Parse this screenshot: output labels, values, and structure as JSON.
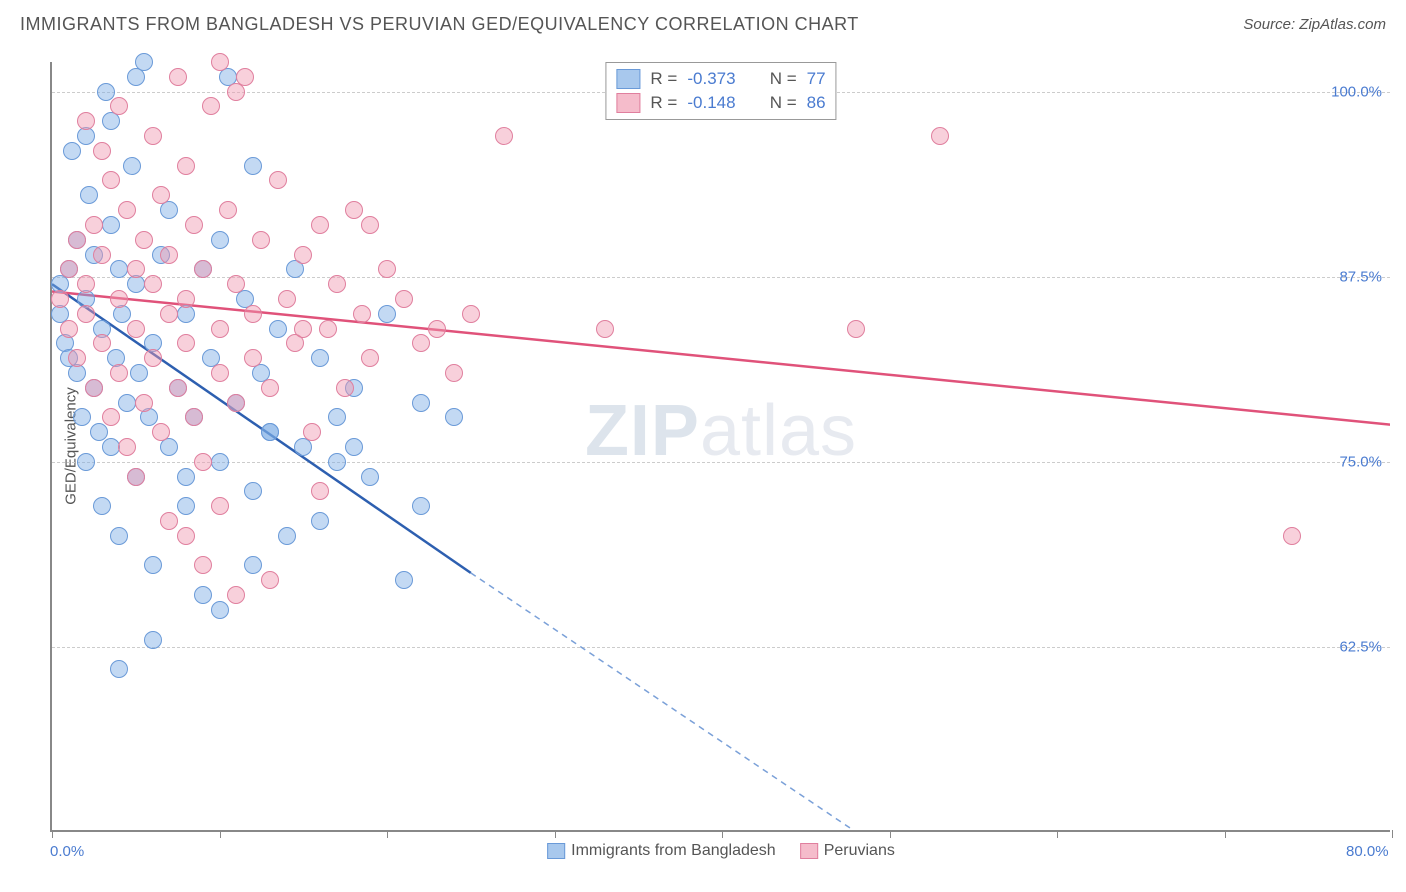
{
  "header": {
    "title": "IMMIGRANTS FROM BANGLADESH VS PERUVIAN GED/EQUIVALENCY CORRELATION CHART",
    "source_prefix": "Source: ",
    "source": "ZipAtlas.com"
  },
  "chart": {
    "type": "scatter",
    "ylabel": "GED/Equivalency",
    "xlim": [
      0,
      80
    ],
    "ylim": [
      50,
      102
    ],
    "x_ticks": [
      0,
      10,
      20,
      30,
      40,
      50,
      60,
      70,
      80
    ],
    "x_tick_labels": {
      "0": "0.0%",
      "80": "80.0%"
    },
    "y_gridlines": [
      62.5,
      75.0,
      87.5,
      100.0
    ],
    "y_tick_labels": [
      "62.5%",
      "75.0%",
      "87.5%",
      "100.0%"
    ],
    "background_color": "#ffffff",
    "grid_color": "#cccccc",
    "axis_color": "#888888",
    "label_color": "#555555",
    "tick_label_color": "#4a7bd0",
    "marker_size": 18,
    "marker_opacity": 0.45,
    "watermark": "ZIPatlas",
    "series": [
      {
        "name": "Immigrants from Bangladesh",
        "color": "#7aaae4",
        "border_color": "#6a9ad8",
        "R": "-0.373",
        "N": "77",
        "trend": {
          "x1": 0,
          "y1": 87.0,
          "x2": 25,
          "y2": 67.5,
          "extend_x2": 48,
          "extend_y2": 50,
          "width": 2.5
        },
        "points": [
          [
            0.5,
            87
          ],
          [
            0.5,
            85
          ],
          [
            0.8,
            83
          ],
          [
            1,
            88
          ],
          [
            1,
            82
          ],
          [
            1.2,
            96
          ],
          [
            1.5,
            90
          ],
          [
            1.5,
            81
          ],
          [
            1.8,
            78
          ],
          [
            2,
            86
          ],
          [
            2,
            75
          ],
          [
            2.2,
            93
          ],
          [
            2.5,
            89
          ],
          [
            2.5,
            80
          ],
          [
            2.8,
            77
          ],
          [
            3,
            84
          ],
          [
            3,
            72
          ],
          [
            3.2,
            100
          ],
          [
            3.5,
            91
          ],
          [
            3.5,
            76
          ],
          [
            3.8,
            82
          ],
          [
            4,
            88
          ],
          [
            4,
            70
          ],
          [
            4.2,
            85
          ],
          [
            4.5,
            79
          ],
          [
            4.8,
            95
          ],
          [
            5,
            87
          ],
          [
            5,
            74
          ],
          [
            5.2,
            81
          ],
          [
            5.5,
            102
          ],
          [
            5.8,
            78
          ],
          [
            6,
            83
          ],
          [
            6,
            68
          ],
          [
            6.5,
            89
          ],
          [
            7,
            76
          ],
          [
            7,
            92
          ],
          [
            7.5,
            80
          ],
          [
            8,
            85
          ],
          [
            8,
            72
          ],
          [
            8.5,
            78
          ],
          [
            9,
            88
          ],
          [
            9,
            66
          ],
          [
            9.5,
            82
          ],
          [
            10,
            75
          ],
          [
            10,
            90
          ],
          [
            10.5,
            101
          ],
          [
            11,
            79
          ],
          [
            11.5,
            86
          ],
          [
            12,
            73
          ],
          [
            12,
            95
          ],
          [
            12.5,
            81
          ],
          [
            13,
            77
          ],
          [
            13.5,
            84
          ],
          [
            14,
            70
          ],
          [
            14.5,
            88
          ],
          [
            15,
            76
          ],
          [
            16,
            82
          ],
          [
            17,
            78
          ],
          [
            18,
            80
          ],
          [
            19,
            74
          ],
          [
            20,
            85
          ],
          [
            21,
            67
          ],
          [
            22,
            79
          ],
          [
            4,
            61
          ],
          [
            6,
            63
          ],
          [
            10,
            65
          ],
          [
            12,
            68
          ],
          [
            16,
            71
          ],
          [
            18,
            76
          ],
          [
            22,
            72
          ],
          [
            24,
            78
          ],
          [
            13,
            77
          ],
          [
            17,
            75
          ],
          [
            8,
            74
          ],
          [
            2,
            97
          ],
          [
            3.5,
            98
          ],
          [
            5,
            101
          ]
        ]
      },
      {
        "name": "Peruvians",
        "color": "#f096af",
        "border_color": "#e07f9e",
        "R": "-0.148",
        "N": "86",
        "trend": {
          "x1": 0,
          "y1": 86.5,
          "x2": 80,
          "y2": 77.5,
          "width": 2.5
        },
        "points": [
          [
            0.5,
            86
          ],
          [
            1,
            88
          ],
          [
            1,
            84
          ],
          [
            1.5,
            90
          ],
          [
            1.5,
            82
          ],
          [
            2,
            87
          ],
          [
            2,
            85
          ],
          [
            2.5,
            91
          ],
          [
            2.5,
            80
          ],
          [
            3,
            89
          ],
          [
            3,
            83
          ],
          [
            3.5,
            94
          ],
          [
            3.5,
            78
          ],
          [
            4,
            86
          ],
          [
            4,
            81
          ],
          [
            4.5,
            92
          ],
          [
            4.5,
            76
          ],
          [
            5,
            88
          ],
          [
            5,
            84
          ],
          [
            5.5,
            90
          ],
          [
            5.5,
            79
          ],
          [
            6,
            87
          ],
          [
            6,
            82
          ],
          [
            6.5,
            93
          ],
          [
            6.5,
            77
          ],
          [
            7,
            89
          ],
          [
            7,
            85
          ],
          [
            7.5,
            101
          ],
          [
            7.5,
            80
          ],
          [
            8,
            86
          ],
          [
            8,
            83
          ],
          [
            8.5,
            91
          ],
          [
            8.5,
            78
          ],
          [
            9,
            88
          ],
          [
            9,
            75
          ],
          [
            9.5,
            99
          ],
          [
            10,
            84
          ],
          [
            10,
            81
          ],
          [
            10.5,
            92
          ],
          [
            11,
            87
          ],
          [
            11,
            79
          ],
          [
            11.5,
            101
          ],
          [
            12,
            85
          ],
          [
            12,
            82
          ],
          [
            12.5,
            90
          ],
          [
            13,
            80
          ],
          [
            13.5,
            94
          ],
          [
            14,
            86
          ],
          [
            14.5,
            83
          ],
          [
            15,
            89
          ],
          [
            15.5,
            77
          ],
          [
            16,
            91
          ],
          [
            16.5,
            84
          ],
          [
            17,
            87
          ],
          [
            17.5,
            80
          ],
          [
            18,
            92
          ],
          [
            18.5,
            85
          ],
          [
            19,
            82
          ],
          [
            20,
            88
          ],
          [
            21,
            86
          ],
          [
            22,
            83
          ],
          [
            23,
            84
          ],
          [
            24,
            81
          ],
          [
            25,
            85
          ],
          [
            13,
            67
          ],
          [
            16,
            73
          ],
          [
            8,
            70
          ],
          [
            10,
            72
          ],
          [
            27,
            97
          ],
          [
            33,
            84
          ],
          [
            48,
            84
          ],
          [
            53,
            97
          ],
          [
            74,
            70
          ],
          [
            5,
            74
          ],
          [
            7,
            71
          ],
          [
            9,
            68
          ],
          [
            11,
            66
          ],
          [
            15,
            84
          ],
          [
            19,
            91
          ],
          [
            2,
            98
          ],
          [
            3,
            96
          ],
          [
            4,
            99
          ],
          [
            6,
            97
          ],
          [
            8,
            95
          ],
          [
            10,
            102
          ],
          [
            11,
            100
          ]
        ]
      }
    ],
    "legend_bottom": [
      {
        "label": "Immigrants from Bangladesh",
        "swatch_fill": "#a8c8ed",
        "swatch_border": "#6a9ad8"
      },
      {
        "label": "Peruvians",
        "swatch_fill": "#f5bccb",
        "swatch_border": "#e07f9e"
      }
    ]
  }
}
